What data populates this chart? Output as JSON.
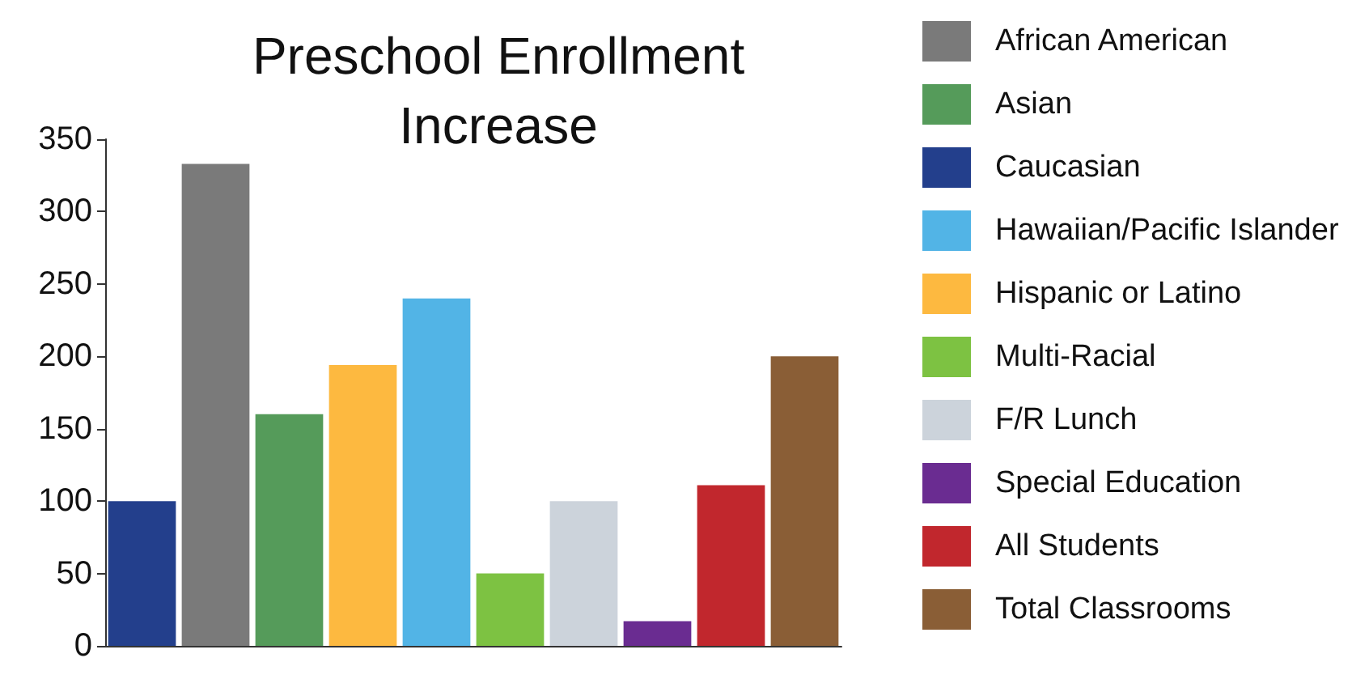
{
  "chart_data": {
    "type": "bar",
    "title": "Preschool Enrollment\nIncrease",
    "stacked": true,
    "categories": [
      null,
      null,
      null,
      null,
      null,
      null,
      null,
      null,
      null,
      null
    ],
    "series": [
      {
        "name": "African American",
        "color": "#7a7a7a",
        "values": [
          null,
          333,
          null,
          null,
          null,
          null,
          null,
          null,
          null,
          null
        ]
      },
      {
        "name": "Asian",
        "color": "#559b5a",
        "values": [
          null,
          null,
          160,
          null,
          null,
          null,
          null,
          null,
          null,
          null
        ]
      },
      {
        "name": "Caucasian",
        "color": "#233f8c",
        "values": [
          100,
          null,
          null,
          null,
          null,
          null,
          null,
          null,
          null,
          null
        ]
      },
      {
        "name": "Hawaiian/Pacific Islander",
        "color": "#52b4e6",
        "values": [
          null,
          null,
          null,
          null,
          240,
          null,
          null,
          null,
          null,
          null
        ]
      },
      {
        "name": "Hispanic or Latino",
        "color": "#fdb940",
        "values": [
          null,
          null,
          null,
          194,
          null,
          null,
          null,
          null,
          null,
          null
        ]
      },
      {
        "name": "Multi-Racial",
        "color": "#7dc242",
        "values": [
          null,
          null,
          null,
          null,
          null,
          50,
          null,
          null,
          null,
          null
        ]
      },
      {
        "name": "F/R Lunch",
        "color": "#ccd3db",
        "values": [
          null,
          null,
          null,
          null,
          null,
          null,
          100,
          null,
          null,
          null
        ]
      },
      {
        "name": "Special Education",
        "color": "#6a2c91",
        "values": [
          null,
          null,
          null,
          null,
          null,
          null,
          null,
          17,
          null,
          null
        ]
      },
      {
        "name": "All Students",
        "color": "#c1272d",
        "values": [
          null,
          null,
          null,
          null,
          null,
          null,
          null,
          null,
          111,
          null
        ]
      },
      {
        "name": "Total Classrooms",
        "color": "#8a5e36",
        "values": [
          null,
          null,
          null,
          null,
          null,
          null,
          null,
          null,
          null,
          200
        ]
      }
    ],
    "ylim": [
      0,
      350
    ],
    "yticks": [
      0,
      50,
      100,
      150,
      200,
      250,
      300,
      350
    ],
    "grid": false,
    "legend": "right"
  }
}
